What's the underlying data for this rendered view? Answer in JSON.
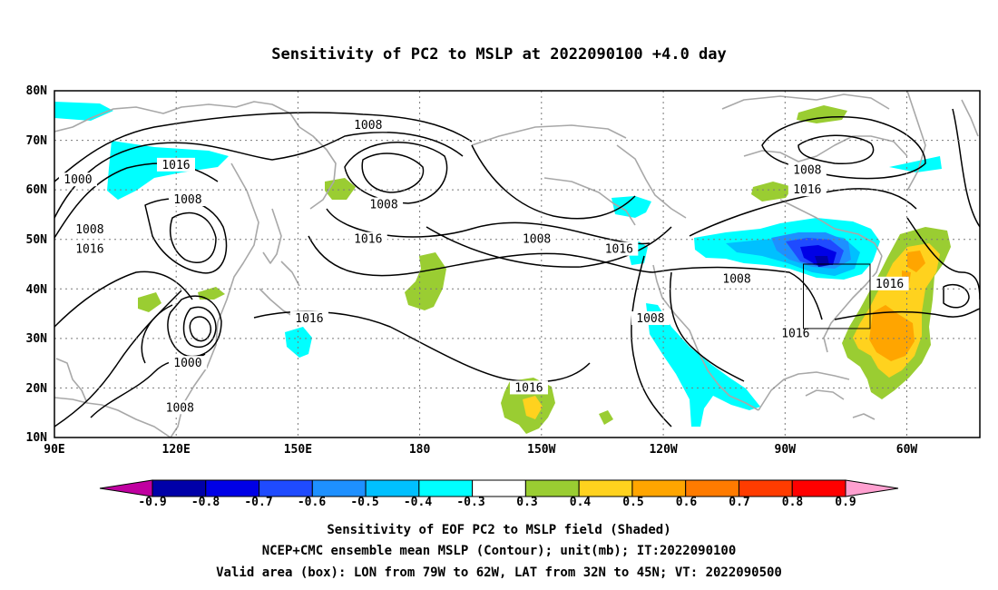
{
  "title": "Sensitivity of PC2 to MSLP at 2022090100 +4.0 day",
  "lat_labels": [
    "80N",
    "70N",
    "60N",
    "50N",
    "40N",
    "30N",
    "20N",
    "10N"
  ],
  "lon_labels": [
    "90E",
    "120E",
    "150E",
    "180",
    "150W",
    "120W",
    "90W",
    "60W"
  ],
  "contour_labels": [
    {
      "text": "1008",
      "lon": 170,
      "lat": 73
    },
    {
      "text": "1016",
      "lon": 121,
      "lat": 65
    },
    {
      "text": "1000",
      "lon": 96,
      "lat": 62
    },
    {
      "text": "1008",
      "lon": 124,
      "lat": 58
    },
    {
      "text": "1008",
      "lon": 99,
      "lat": 52
    },
    {
      "text": "1016",
      "lon": 99,
      "lat": 48
    },
    {
      "text": "1008",
      "lon": 174,
      "lat": 57
    },
    {
      "text": "1016",
      "lon": 170,
      "lat": 50
    },
    {
      "text": "1008",
      "lon": 213,
      "lat": 50
    },
    {
      "text": "1016",
      "lon": 234,
      "lat": 48
    },
    {
      "text": "1008",
      "lon": 264,
      "lat": 42
    },
    {
      "text": "1008",
      "lon": 282,
      "lat": 64
    },
    {
      "text": "1016",
      "lon": 282,
      "lat": 60
    },
    {
      "text": "1016",
      "lon": 303,
      "lat": 41
    },
    {
      "text": "1016",
      "lon": 155,
      "lat": 34
    },
    {
      "text": "1000",
      "lon": 124,
      "lat": 25
    },
    {
      "text": "1008",
      "lon": 122,
      "lat": 16
    },
    {
      "text": "1016",
      "lon": 211,
      "lat": 20
    },
    {
      "text": "1008",
      "lon": 242,
      "lat": 34
    },
    {
      "text": "1016",
      "lon": 279,
      "lat": 31
    }
  ],
  "valid_box": {
    "lon_min": -79,
    "lon_max": -62,
    "lat_min": 32,
    "lat_max": 45
  },
  "colorbar": {
    "labels": [
      "-0.9",
      "-0.8",
      "-0.7",
      "-0.6",
      "-0.5",
      "-0.4",
      "-0.3",
      "0.3",
      "0.4",
      "0.5",
      "0.6",
      "0.7",
      "0.8",
      "0.9"
    ],
    "colors": [
      "#0000a8",
      "#0000e6",
      "#1f4bff",
      "#1e90ff",
      "#00c0ff",
      "#00ffff",
      "#ffffff",
      "#9acd32",
      "#ffd21e",
      "#ffa500",
      "#ff7b00",
      "#ff3c00",
      "#ff0000"
    ],
    "low_tip": "#c000a0",
    "high_tip": "#ffa0d0"
  },
  "caption": {
    "line1": "Sensitivity of EOF PC2 to MSLP field (Shaded)",
    "line2": "NCEP+CMC ensemble mean MSLP (Contour); unit(mb); IT:2022090100",
    "line3": "Valid area (box): LON from 79W to 62W, LAT from 32N to 45N; VT: 2022090500"
  }
}
